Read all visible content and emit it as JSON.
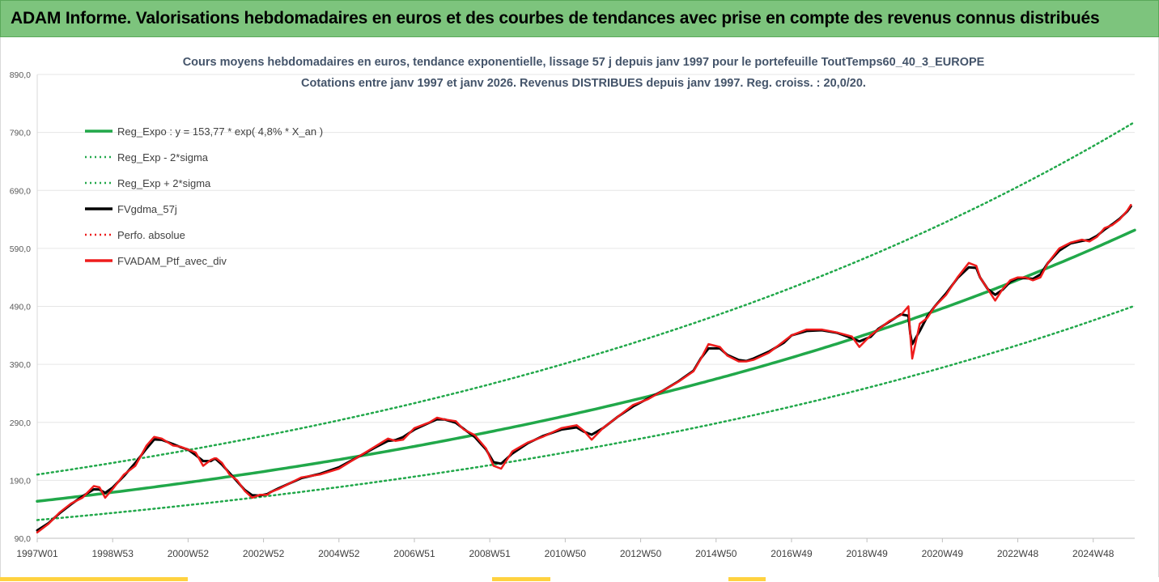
{
  "header": {
    "title": "ADAM Informe. Valorisations hebdomadaires en euros et des courbes de tendances avec prise en compte des revenus connus distribués"
  },
  "colors": {
    "header_bg": "#7dc47d",
    "trend_green": "#21a84a",
    "series_black": "#000000",
    "series_red": "#ee1c1c",
    "title_blue": "#44546a",
    "grid": "#e6e6e6"
  },
  "chart_data": {
    "type": "line",
    "title": "Cours moyens hebdomadaires  en euros, tendance exponentielle, lissage 57 j depuis janv 1997 pour le portefeuille ToutTemps60_40_3_EUROPE",
    "subtitle": "Cotations entre janv 1997 et janv 2026. Revenus DISTRIBUES depuis janv 1997. Reg. croiss. : 20,0/20.",
    "xlabel": "",
    "ylabel": "",
    "ylim": [
      90,
      890
    ],
    "xlim": [
      1997.0,
      2026.1
    ],
    "grid": true,
    "legend_position": "top-left",
    "yticks": [
      "890,0",
      "790,0",
      "690,0",
      "590,0",
      "490,0",
      "390,0",
      "290,0",
      "190,0",
      "90,0"
    ],
    "ytick_values": [
      890,
      790,
      690,
      590,
      490,
      390,
      290,
      190,
      90
    ],
    "xticks": [
      "1997W01",
      "1998W53",
      "2000W52",
      "2002W52",
      "2004W52",
      "2006W51",
      "2008W51",
      "2010W50",
      "2012W50",
      "2014W50",
      "2016W49",
      "2018W49",
      "2020W49",
      "2022W48",
      "2024W48"
    ],
    "xtick_values": [
      1997.0,
      1999.0,
      2001.0,
      2003.0,
      2005.0,
      2007.0,
      2009.0,
      2011.0,
      2013.0,
      2015.0,
      2017.0,
      2019.0,
      2021.0,
      2023.0,
      2025.0
    ],
    "trend": {
      "a": 153.77,
      "rate": 0.048,
      "lower_factor": 0.79,
      "upper_factor": 1.3
    },
    "series": [
      {
        "name": "Reg_Expo : y = 153,77 * exp( 4,8% *  X_an )",
        "kind": "trend",
        "color": "#21a84a",
        "style": "solid"
      },
      {
        "name": "Reg_Exp - 2*sigma",
        "kind": "lower",
        "color": "#21a84a",
        "style": "dotted"
      },
      {
        "name": "Reg_Exp + 2*sigma",
        "kind": "upper",
        "color": "#21a84a",
        "style": "dotted"
      },
      {
        "name": "FVgdma_57j",
        "kind": "smooth",
        "color": "#000000",
        "style": "solid"
      },
      {
        "name": "Perfo. absolue",
        "kind": "absolute",
        "color": "#ee1c1c",
        "style": "dotted"
      },
      {
        "name": "FVADAM_Ptf_avec_div",
        "kind": "price",
        "color": "#ee1c1c",
        "style": "solid"
      }
    ],
    "price_points": {
      "x": [
        1997.0,
        1997.3,
        1997.6,
        1997.9,
        1998.2,
        1998.5,
        1998.65,
        1998.8,
        1999.0,
        1999.3,
        1999.6,
        1999.9,
        2000.1,
        2000.3,
        2000.6,
        2000.8,
        2001.0,
        2001.2,
        2001.4,
        2001.6,
        2001.7,
        2001.75,
        2001.9,
        2002.1,
        2002.3,
        2002.5,
        2002.7,
        2002.9,
        2003.1,
        2003.2,
        2003.4,
        2003.7,
        2004.0,
        2004.5,
        2005.0,
        2005.5,
        2006.0,
        2006.3,
        2006.5,
        2006.7,
        2007.0,
        2007.4,
        2007.6,
        2007.8,
        2008.1,
        2008.3,
        2008.6,
        2008.9,
        2009.1,
        2009.3,
        2009.6,
        2010.0,
        2010.4,
        2010.9,
        2011.3,
        2011.5,
        2011.7,
        2012.0,
        2012.4,
        2012.8,
        2013.2,
        2013.6,
        2014.0,
        2014.4,
        2014.6,
        2014.8,
        2015.1,
        2015.3,
        2015.6,
        2015.8,
        2016.0,
        2016.4,
        2016.8,
        2017.0,
        2017.4,
        2017.8,
        2018.2,
        2018.6,
        2018.8,
        2019.1,
        2019.3,
        2019.6,
        2019.9,
        2020.1,
        2020.15,
        2020.2,
        2020.4,
        2020.6,
        2020.8,
        2021.1,
        2021.4,
        2021.7,
        2021.9,
        2022.0,
        2022.2,
        2022.4,
        2022.6,
        2022.8,
        2023.0,
        2023.2,
        2023.4,
        2023.6,
        2023.8,
        2024.1,
        2024.4,
        2024.7,
        2024.9,
        2025.1,
        2025.3,
        2025.5,
        2025.7,
        2025.9,
        2026.0
      ],
      "y": [
        100,
        115,
        135,
        150,
        160,
        180,
        178,
        160,
        175,
        200,
        215,
        250,
        265,
        262,
        250,
        248,
        243,
        238,
        215,
        225,
        228,
        228,
        220,
        200,
        190,
        172,
        160,
        165,
        165,
        170,
        175,
        185,
        195,
        200,
        210,
        230,
        250,
        262,
        258,
        260,
        280,
        290,
        298,
        295,
        292,
        278,
        268,
        245,
        215,
        210,
        240,
        255,
        265,
        280,
        285,
        275,
        260,
        280,
        300,
        320,
        330,
        345,
        360,
        378,
        400,
        425,
        420,
        405,
        395,
        395,
        398,
        410,
        430,
        440,
        450,
        450,
        445,
        438,
        420,
        440,
        450,
        465,
        475,
        490,
        440,
        400,
        460,
        470,
        490,
        510,
        540,
        565,
        560,
        540,
        520,
        500,
        520,
        535,
        540,
        540,
        535,
        540,
        565,
        590,
        600,
        605,
        602,
        610,
        625,
        630,
        640,
        655,
        665
      ]
    }
  }
}
